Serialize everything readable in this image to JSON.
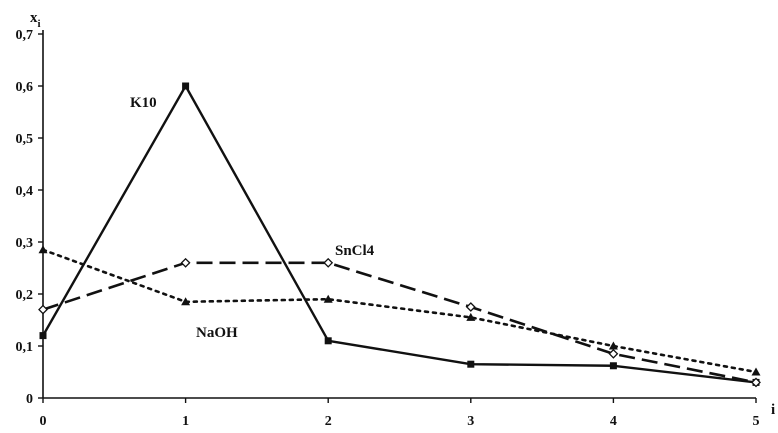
{
  "chart_data": {
    "type": "line",
    "title": "",
    "xlabel": "i",
    "ylabel": "x",
    "ylabel_subscript": "i",
    "x": [
      0,
      1,
      2,
      3,
      4,
      5
    ],
    "x_tick_labels": [
      "0",
      "1",
      "2",
      "3",
      "4",
      "5"
    ],
    "y_tick_labels": [
      "0",
      "0,1",
      "0,2",
      "0,3",
      "0,4",
      "0,5",
      "0,6",
      "0,7"
    ],
    "xlim": [
      0,
      5
    ],
    "ylim": [
      0,
      0.7
    ],
    "y_ticks": [
      0,
      0.1,
      0.2,
      0.3,
      0.4,
      0.5,
      0.6,
      0.7
    ],
    "grid": false,
    "legend": "none (series labelled inline)",
    "series": [
      {
        "name": "K10",
        "values": [
          0.12,
          0.6,
          0.11,
          0.065,
          0.062,
          0.03
        ],
        "line_style": "solid",
        "marker": "square",
        "color": "#111111"
      },
      {
        "name": "SnCl4",
        "values": [
          0.17,
          0.26,
          0.26,
          0.175,
          0.085,
          0.03
        ],
        "line_style": "dashed",
        "marker": "diamond",
        "color": "#111111"
      },
      {
        "name": "NaOH",
        "values": [
          0.285,
          0.185,
          0.19,
          0.155,
          0.1,
          0.05
        ],
        "line_style": "dotted",
        "marker": "triangle",
        "color": "#111111"
      }
    ]
  }
}
